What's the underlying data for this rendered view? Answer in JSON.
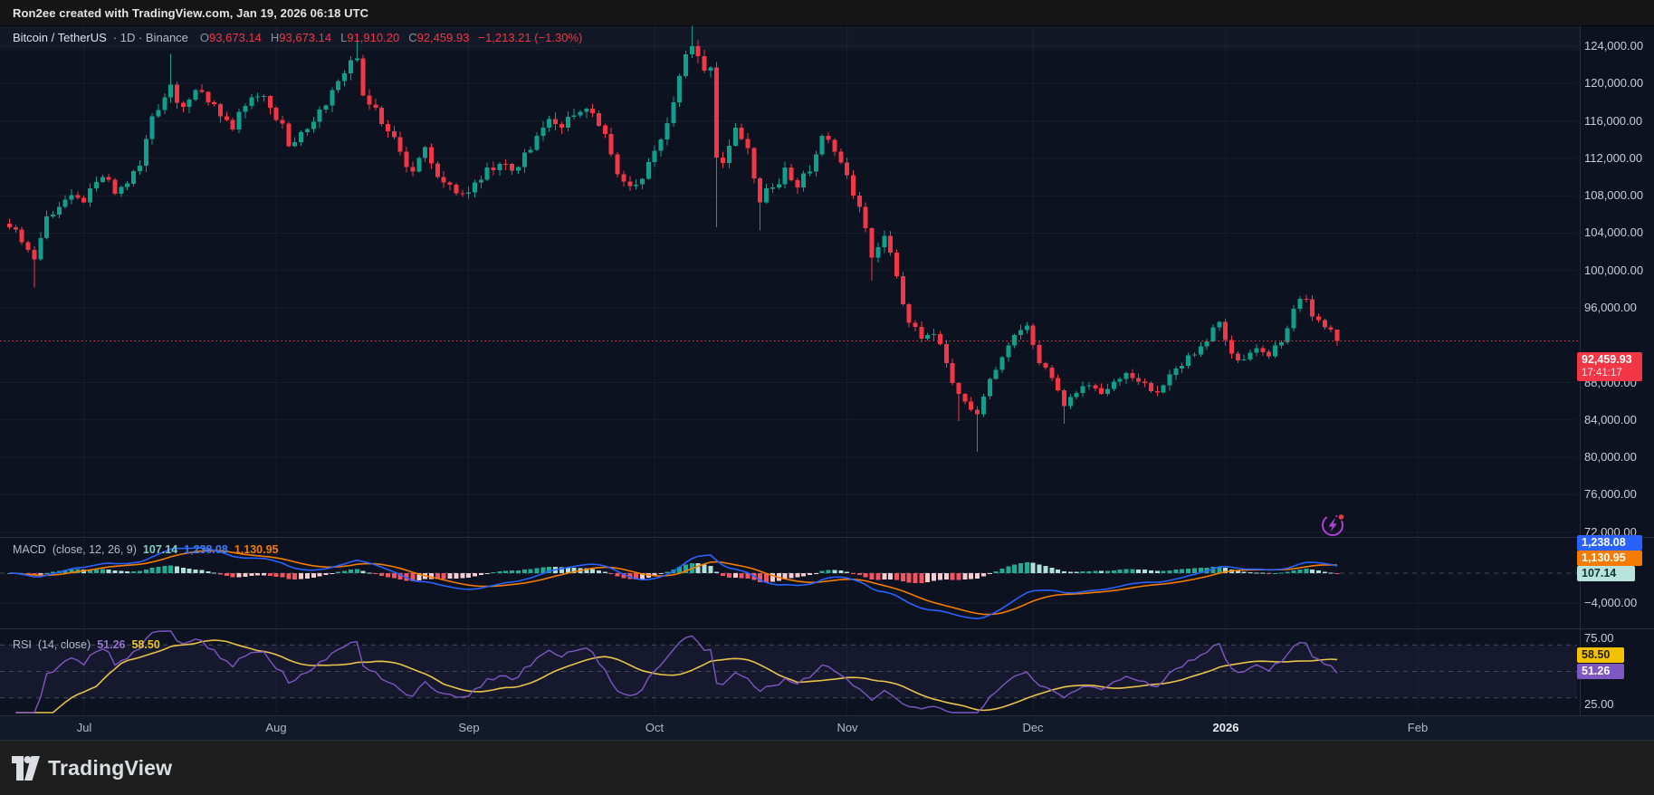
{
  "header": {
    "title": "Ron2ee created with TradingView.com, Jan 19, 2026 06:18 UTC"
  },
  "legend": {
    "symbol": "Bitcoin / TetherUS",
    "meta": "· 1D · Binance",
    "ohlc": {
      "o_label": "O",
      "o": "93,673.14",
      "h_label": "H",
      "h": "93,673.14",
      "l_label": "L",
      "l": "91,910.20",
      "c_label": "C",
      "c": "92,459.93",
      "change": "−1,213.21 (−1.30%)"
    }
  },
  "macd_legend": {
    "name": "MACD",
    "params": "(close, 12, 26, 9)",
    "hist_value": "107.14",
    "macd_value": "1,238.08",
    "signal_value": "1,130.95"
  },
  "rsi_legend": {
    "name": "RSI",
    "params": "(14, close)",
    "rsi_value": "51.26",
    "ma_value": "58.50"
  },
  "price_axis": {
    "badge": {
      "price": "92,459.93",
      "countdown": "17:41:17"
    },
    "ticks": [
      {
        "v": 124000,
        "t": "124,000.00"
      },
      {
        "v": 120000,
        "t": "120,000.00"
      },
      {
        "v": 116000,
        "t": "116,000.00"
      },
      {
        "v": 112000,
        "t": "112,000.00"
      },
      {
        "v": 108000,
        "t": "108,000.00"
      },
      {
        "v": 104000,
        "t": "104,000.00"
      },
      {
        "v": 100000,
        "t": "100,000.00"
      },
      {
        "v": 96000,
        "t": "96,000.00"
      },
      {
        "v": 88000,
        "t": "88,000.00"
      },
      {
        "v": 84000,
        "t": "84,000.00"
      },
      {
        "v": 80000,
        "t": "80,000.00"
      },
      {
        "v": 76000,
        "t": "76,000.00"
      },
      {
        "v": 72000,
        "t": "72,000.00"
      }
    ]
  },
  "macd_axis": {
    "tick": {
      "v": -4000,
      "t": "−4,000.00"
    },
    "badges": {
      "macd": "1,238.08",
      "signal": "1,130.95",
      "hist": "107.14"
    }
  },
  "rsi_axis": {
    "ticks": [
      {
        "v": 75,
        "t": "75.00"
      },
      {
        "v": 25,
        "t": "25.00"
      }
    ],
    "badges": {
      "ma": "58.50",
      "rsi": "51.26"
    }
  },
  "footer": {
    "logo_text": "TradingView"
  },
  "chart_data": {
    "type": "candlestick",
    "panes": [
      "price",
      "macd_12_26_9",
      "rsi_14"
    ],
    "interval": "1D",
    "num_days": 215,
    "first_day": "2025-06-19",
    "last_day": "2026-01-19",
    "last_candle": {
      "open": 93673.14,
      "high": 93673.14,
      "low": 91910.2,
      "close": 92459.93,
      "change": -1213.21,
      "change_pct": -1.3
    },
    "last_price": 92459.93,
    "price_range_visible": {
      "min": 71100,
      "max": 126250
    },
    "close_anchors": [
      [
        0,
        104600
      ],
      [
        2,
        103000
      ],
      [
        4,
        101200
      ],
      [
        6,
        105800
      ],
      [
        9,
        107600
      ],
      [
        12,
        107300
      ],
      [
        15,
        110000
      ],
      [
        17,
        108200
      ],
      [
        19,
        109300
      ],
      [
        21,
        111200
      ],
      [
        23,
        116500
      ],
      [
        26,
        119900
      ],
      [
        28,
        117500
      ],
      [
        30,
        119300
      ],
      [
        33,
        117800
      ],
      [
        36,
        115100
      ],
      [
        38,
        117600
      ],
      [
        40,
        118600
      ],
      [
        42,
        117400
      ],
      [
        44,
        115700
      ],
      [
        45,
        113300
      ],
      [
        47,
        114800
      ],
      [
        50,
        117200
      ],
      [
        52,
        119300
      ],
      [
        54,
        121100
      ],
      [
        56,
        122700
      ],
      [
        57,
        118700
      ],
      [
        59,
        117400
      ],
      [
        61,
        114900
      ],
      [
        63,
        112700
      ],
      [
        65,
        110600
      ],
      [
        67,
        113200
      ],
      [
        69,
        110000
      ],
      [
        71,
        109200
      ],
      [
        73,
        108200
      ],
      [
        75,
        109400
      ],
      [
        77,
        111000
      ],
      [
        79,
        111400
      ],
      [
        81,
        110700
      ],
      [
        83,
        112600
      ],
      [
        85,
        114400
      ],
      [
        87,
        116200
      ],
      [
        89,
        115300
      ],
      [
        91,
        116600
      ],
      [
        93,
        117300
      ],
      [
        95,
        115500
      ],
      [
        97,
        112400
      ],
      [
        99,
        109500
      ],
      [
        101,
        109200
      ],
      [
        103,
        111600
      ],
      [
        105,
        114000
      ],
      [
        107,
        118000
      ],
      [
        108,
        120800
      ],
      [
        110,
        124000
      ],
      [
        112,
        121400
      ],
      [
        113,
        121700
      ],
      [
        114,
        112100
      ],
      [
        115,
        111500
      ],
      [
        117,
        115300
      ],
      [
        119,
        113100
      ],
      [
        121,
        107300
      ],
      [
        123,
        108900
      ],
      [
        125,
        111000
      ],
      [
        127,
        108900
      ],
      [
        129,
        110600
      ],
      [
        131,
        114400
      ],
      [
        133,
        112700
      ],
      [
        135,
        110200
      ],
      [
        137,
        106800
      ],
      [
        139,
        101400
      ],
      [
        141,
        103700
      ],
      [
        143,
        99400
      ],
      [
        145,
        94400
      ],
      [
        147,
        92700
      ],
      [
        149,
        93200
      ],
      [
        151,
        90100
      ],
      [
        153,
        86800
      ],
      [
        155,
        85100
      ],
      [
        156,
        84600
      ],
      [
        158,
        88400
      ],
      [
        160,
        90700
      ],
      [
        162,
        93100
      ],
      [
        164,
        94100
      ],
      [
        166,
        90100
      ],
      [
        168,
        88500
      ],
      [
        170,
        85500
      ],
      [
        172,
        86900
      ],
      [
        174,
        87700
      ],
      [
        176,
        86800
      ],
      [
        178,
        88100
      ],
      [
        180,
        89000
      ],
      [
        182,
        88100
      ],
      [
        184,
        87100
      ],
      [
        186,
        87700
      ],
      [
        188,
        89500
      ],
      [
        190,
        90900
      ],
      [
        192,
        91900
      ],
      [
        194,
        93900
      ],
      [
        195,
        94500
      ],
      [
        197,
        91100
      ],
      [
        199,
        90500
      ],
      [
        201,
        91700
      ],
      [
        203,
        90800
      ],
      [
        205,
        92300
      ],
      [
        207,
        95900
      ],
      [
        209,
        96900
      ],
      [
        210,
        95100
      ],
      [
        211,
        94700
      ],
      [
        212,
        93900
      ],
      [
        213,
        93673
      ],
      [
        214,
        92459.93
      ]
    ],
    "wick_overrides": {
      "4": {
        "low": 98200
      },
      "26": {
        "high": 123200
      },
      "56": {
        "high": 124500
      },
      "110": {
        "high": 126200
      },
      "114": {
        "low": 104600
      },
      "121": {
        "low": 104300
      },
      "139": {
        "low": 98900
      },
      "153": {
        "low": 83900
      },
      "156": {
        "low": 80600
      },
      "170": {
        "low": 83600
      },
      "209": {
        "high": 97400
      },
      "214": {
        "high": 93673.14,
        "low": 91910.2
      }
    },
    "months": [
      {
        "label": "Jul",
        "day": 12
      },
      {
        "label": "Aug",
        "day": 43
      },
      {
        "label": "Sep",
        "day": 74
      },
      {
        "label": "Oct",
        "day": 104
      },
      {
        "label": "Nov",
        "day": 135
      },
      {
        "label": "Dec",
        "day": 165
      },
      {
        "label": "2026",
        "day": 196,
        "emphasis": true
      },
      {
        "label": "Feb",
        "day": 227
      }
    ],
    "macd": {
      "fast": 12,
      "slow": 26,
      "signal_len": 9,
      "last": {
        "macd": 1238.08,
        "signal": 1130.95,
        "hist": 107.14
      },
      "visible_range": {
        "min": -7150,
        "max": 4480
      },
      "labeled_tick": -4000
    },
    "rsi": {
      "length": 14,
      "ma_length": 14,
      "last": {
        "rsi": 51.26,
        "ma": 58.5
      },
      "levels": {
        "upper": 70,
        "middle": 50,
        "lower": 30
      },
      "ticks": [
        75,
        25
      ],
      "visible_range": {
        "min": 18,
        "max": 81.5
      }
    },
    "colors": {
      "background": "#0d1220",
      "grid": "rgba(255,255,255,0.05)",
      "up": "#129e8d",
      "down": "#f23645",
      "macd_line": "#2962ff",
      "signal_line": "#f57c00",
      "hist_grow_above": "#22ab94",
      "hist_fall_above": "#aee2d9",
      "hist_fall_below": "#f7525f",
      "hist_grow_below": "#f7ccd1",
      "rsi_line": "#7e57c2",
      "rsi_ma_line": "#e8c34a",
      "rsi_band_fill": "rgba(126,87,194,0.09)",
      "level_dash": "#464b59",
      "last_price_line": "#f23645",
      "flash_icon": "#b43fd6",
      "alert_dot": "#f23645"
    }
  }
}
